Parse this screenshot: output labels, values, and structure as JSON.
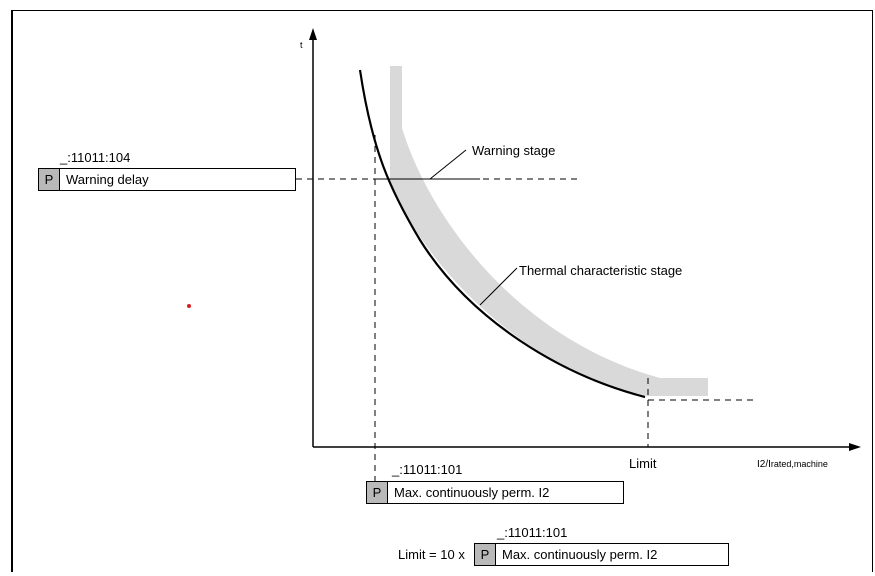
{
  "y_axis_label": "t",
  "x_axis_label_main": "I2/I",
  "x_axis_label_sub": "rated,machine",
  "warning_param": {
    "id": "_:11011:104",
    "p": "P",
    "text": "Warning delay"
  },
  "annotations": {
    "warning_stage": "Warning stage",
    "thermal_stage": "Thermal characteristic stage",
    "limit": "Limit"
  },
  "i2_param": {
    "id": "_:11011:101",
    "p": "P",
    "text": "Max. continuously perm. I2"
  },
  "limit_formula": {
    "id": "_:11011:101",
    "prefix": "Limit = 10 x",
    "p": "P",
    "text": "Max. continuously perm. I2"
  },
  "colors": {
    "band": "#d9d9d9",
    "curve": "#000000",
    "dot": "#d42020"
  }
}
